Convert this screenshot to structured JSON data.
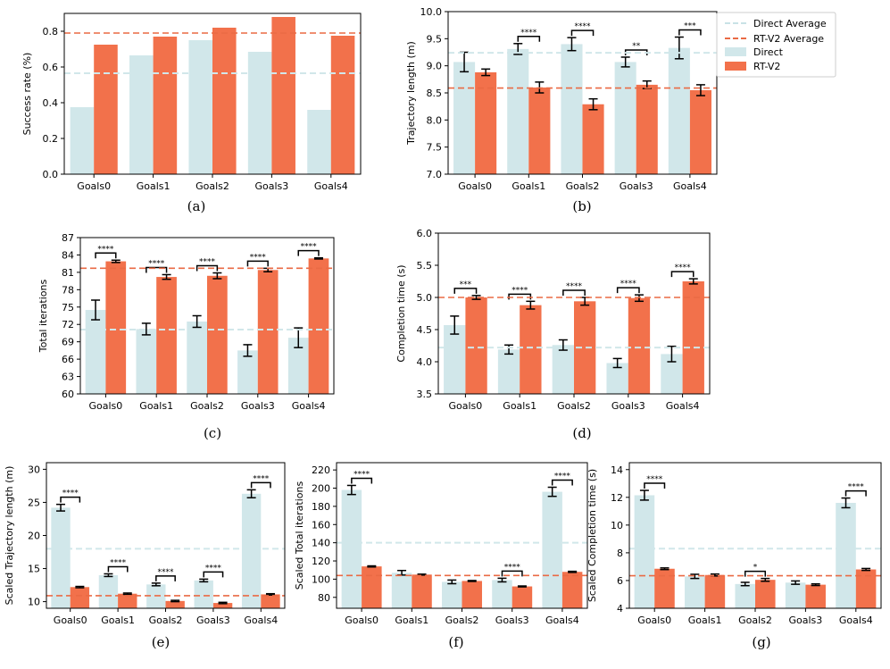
{
  "colors": {
    "direct": "#d1e7ea",
    "rtv2": "#f2714b",
    "avg_direct": "#d1e7ea",
    "avg_rtv2": "#ea6a44"
  },
  "legend": {
    "items": [
      {
        "label": "Direct Average",
        "kind": "dash",
        "color": "#c9e2e6"
      },
      {
        "label": "RT-V2 Average",
        "kind": "dash",
        "color": "#ea6a44"
      },
      {
        "label": "Direct",
        "kind": "patch",
        "color": "#d1e7ea"
      },
      {
        "label": "RT-V2",
        "kind": "patch",
        "color": "#f2714b"
      }
    ]
  },
  "chart_data": [
    {
      "id": "a",
      "caption": "(a)",
      "type": "bar",
      "ylabel": "Success rate (%)",
      "ylim": [
        0,
        0.9
      ],
      "yticks": [
        0.0,
        0.2,
        0.4,
        0.6,
        0.8
      ],
      "ytick_labels": [
        "0.0",
        "0.2",
        "0.4",
        "0.6",
        "0.8"
      ],
      "categories": [
        "Goals0",
        "Goals1",
        "Goals2",
        "Goals3",
        "Goals4"
      ],
      "series": [
        {
          "name": "Direct",
          "values": [
            0.375,
            0.665,
            0.75,
            0.685,
            0.36
          ],
          "err": null
        },
        {
          "name": "RT-V2",
          "values": [
            0.725,
            0.77,
            0.82,
            0.88,
            0.775
          ],
          "err": null
        }
      ],
      "avg": {
        "Direct": 0.565,
        "RT-V2": 0.79
      },
      "sig": []
    },
    {
      "id": "b",
      "caption": "(b)",
      "type": "bar",
      "ylabel": "Trajectory length (m)",
      "ylim": [
        7.0,
        10.0
      ],
      "yticks": [
        7.0,
        7.5,
        8.0,
        8.5,
        9.0,
        9.5,
        10.0
      ],
      "ytick_labels": [
        "7.0",
        "7.5",
        "8.0",
        "8.5",
        "9.0",
        "9.5",
        "10.0"
      ],
      "categories": [
        "Goals0",
        "Goals1",
        "Goals2",
        "Goals3",
        "Goals4"
      ],
      "series": [
        {
          "name": "Direct",
          "values": [
            9.07,
            9.31,
            9.4,
            9.07,
            9.33
          ],
          "err": [
            0.18,
            0.1,
            0.12,
            0.09,
            0.2
          ]
        },
        {
          "name": "RT-V2",
          "values": [
            8.88,
            8.6,
            8.29,
            8.65,
            8.55
          ],
          "err": [
            0.06,
            0.1,
            0.1,
            0.07,
            0.1
          ]
        }
      ],
      "avg": {
        "Direct": 9.24,
        "RT-V2": 8.59
      },
      "sig": [
        "",
        "****",
        "****",
        "**",
        "***"
      ]
    },
    {
      "id": "c",
      "caption": "(c)",
      "type": "bar",
      "ylabel": "Total iterations",
      "ylim": [
        60,
        87
      ],
      "yticks": [
        60,
        63,
        66,
        69,
        72,
        75,
        78,
        81,
        84,
        87
      ],
      "ytick_labels": [
        "60",
        "63",
        "66",
        "69",
        "72",
        "75",
        "78",
        "81",
        "84",
        "87"
      ],
      "categories": [
        "Goals0",
        "Goals1",
        "Goals2",
        "Goals3",
        "Goals4"
      ],
      "series": [
        {
          "name": "Direct",
          "values": [
            74.5,
            71.2,
            72.5,
            67.5,
            69.7
          ],
          "err": [
            1.7,
            1.0,
            1.0,
            1.0,
            1.7
          ]
        },
        {
          "name": "RT-V2",
          "values": [
            82.9,
            80.2,
            80.4,
            81.4,
            83.4
          ],
          "err": [
            0.2,
            0.4,
            0.5,
            0.3,
            0.1
          ]
        }
      ],
      "avg": {
        "Direct": 71.1,
        "RT-V2": 81.7
      },
      "sig": [
        "****",
        "****",
        "****",
        "****",
        "****"
      ]
    },
    {
      "id": "d",
      "caption": "(d)",
      "type": "bar",
      "ylabel": "Completion time (s)",
      "ylim": [
        3.5,
        6.0
      ],
      "yticks": [
        3.5,
        4.0,
        4.5,
        5.0,
        5.5,
        6.0
      ],
      "ytick_labels": [
        "3.5",
        "4.0",
        "4.5",
        "5.0",
        "5.5",
        "6.0"
      ],
      "categories": [
        "Goals0",
        "Goals1",
        "Goals2",
        "Goals3",
        "Goals4"
      ],
      "series": [
        {
          "name": "Direct",
          "values": [
            4.57,
            4.19,
            4.26,
            3.98,
            4.12
          ],
          "err": [
            0.14,
            0.07,
            0.08,
            0.07,
            0.12
          ]
        },
        {
          "name": "RT-V2",
          "values": [
            5.0,
            4.88,
            4.94,
            4.99,
            5.25
          ],
          "err": [
            0.03,
            0.06,
            0.06,
            0.05,
            0.04
          ]
        }
      ],
      "avg": {
        "Direct": 4.22,
        "RT-V2": 5.0
      },
      "sig": [
        "***",
        "****",
        "****",
        "****",
        "****"
      ]
    },
    {
      "id": "e",
      "caption": "(e)",
      "type": "bar",
      "ylabel": "Scaled Trajectory length (m)",
      "ylim": [
        9,
        31
      ],
      "yticks": [
        10,
        15,
        20,
        25,
        30
      ],
      "ytick_labels": [
        "10",
        "15",
        "20",
        "25",
        "30"
      ],
      "categories": [
        "Goals0",
        "Goals1",
        "Goals2",
        "Goals3",
        "Goals4"
      ],
      "series": [
        {
          "name": "Direct",
          "values": [
            24.2,
            14.0,
            12.6,
            13.2,
            26.3
          ],
          "err": [
            0.5,
            0.2,
            0.2,
            0.2,
            0.6
          ]
        },
        {
          "name": "RT-V2",
          "values": [
            12.2,
            11.2,
            10.1,
            9.8,
            11.1
          ],
          "err": [
            0.1,
            0.1,
            0.1,
            0.1,
            0.1
          ]
        }
      ],
      "avg": {
        "Direct": 18.0,
        "RT-V2": 10.9
      },
      "sig": [
        "****",
        "****",
        "****",
        "****",
        "****"
      ]
    },
    {
      "id": "f",
      "caption": "(f)",
      "type": "bar",
      "ylabel": "Scaled Total iterations",
      "ylim": [
        68,
        228
      ],
      "yticks": [
        80,
        100,
        120,
        140,
        160,
        180,
        200,
        220
      ],
      "ytick_labels": [
        "80",
        "100",
        "120",
        "140",
        "160",
        "180",
        "200",
        "220"
      ],
      "categories": [
        "Goals0",
        "Goals1",
        "Goals2",
        "Goals3",
        "Goals4"
      ],
      "series": [
        {
          "name": "Direct",
          "values": [
            198,
            107,
            97,
            99,
            196
          ],
          "err": [
            5,
            2.5,
            2,
            2,
            5
          ]
        },
        {
          "name": "RT-V2",
          "values": [
            114,
            105,
            98,
            92,
            108
          ],
          "err": [
            0.6,
            0.5,
            0.5,
            0.5,
            0.6
          ]
        }
      ],
      "avg": {
        "Direct": 140,
        "RT-V2": 104
      },
      "sig": [
        "****",
        "",
        "",
        "****",
        "****"
      ]
    },
    {
      "id": "g",
      "caption": "(g)",
      "type": "bar",
      "ylabel": "Scaled Completion time (s)",
      "ylim": [
        4,
        14.5
      ],
      "yticks": [
        4,
        6,
        8,
        10,
        12,
        14
      ],
      "ytick_labels": [
        "4",
        "6",
        "8",
        "10",
        "12",
        "14"
      ],
      "categories": [
        "Goals0",
        "Goals1",
        "Goals2",
        "Goals3",
        "Goals4"
      ],
      "series": [
        {
          "name": "Direct",
          "values": [
            12.15,
            6.3,
            5.75,
            5.85,
            11.6
          ],
          "err": [
            0.35,
            0.15,
            0.12,
            0.12,
            0.35
          ]
        },
        {
          "name": "RT-V2",
          "values": [
            6.85,
            6.4,
            6.05,
            5.7,
            6.8
          ],
          "err": [
            0.06,
            0.07,
            0.1,
            0.06,
            0.07
          ]
        }
      ],
      "avg": {
        "Direct": 8.3,
        "RT-V2": 6.35
      },
      "sig": [
        "****",
        "",
        "*",
        "",
        "****"
      ]
    }
  ]
}
